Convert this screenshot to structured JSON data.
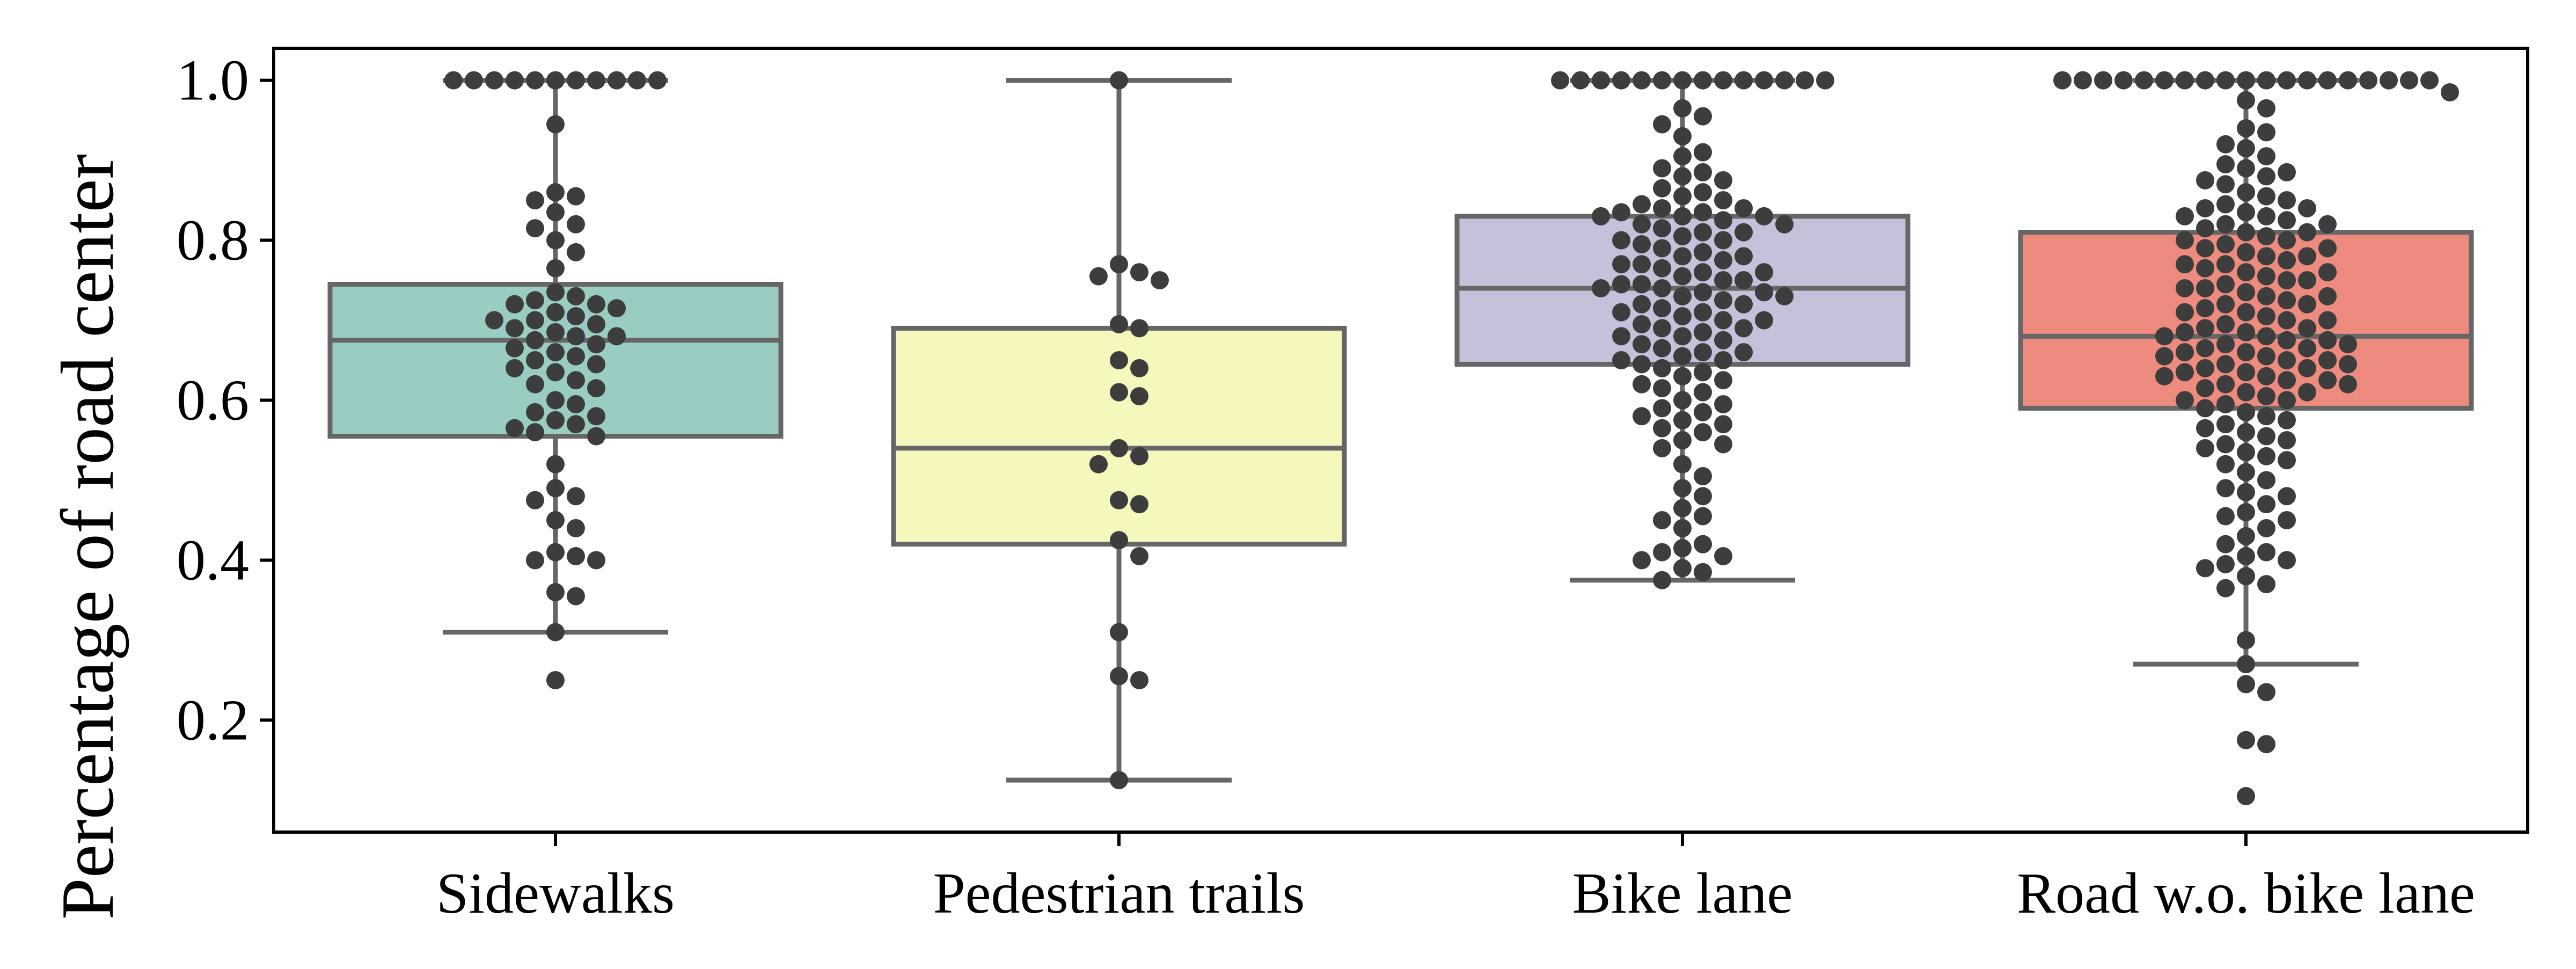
{
  "chart_data": {
    "type": "box",
    "title": "",
    "xlabel": "",
    "ylabel": "Percentage of road center",
    "ylim": [
      0.06,
      1.04
    ],
    "y_ticks": [
      "0.2",
      "0.4",
      "0.6",
      "0.8",
      "1.0"
    ],
    "y_tick_values": [
      0.2,
      0.4,
      0.6,
      0.8,
      1.0
    ],
    "grid": false,
    "legend": "none",
    "overlay": "swarm",
    "point_color": "#3d3d3d",
    "line_color": "#666666",
    "categories": [
      "Sidewalks",
      "Pedestrian trails",
      "Bike lane",
      "Road w.o. bike lane"
    ],
    "boxes": [
      {
        "category": "Sidewalks",
        "color": "#99ccc2",
        "whisker_low": 0.31,
        "q1": 0.555,
        "median": 0.675,
        "q3": 0.745,
        "whisker_high": 1.0,
        "points": [
          1.0,
          1.0,
          1.0,
          1.0,
          1.0,
          1.0,
          1.0,
          1.0,
          1.0,
          1.0,
          1.0,
          0.945,
          0.86,
          0.855,
          0.85,
          0.835,
          0.82,
          0.815,
          0.8,
          0.785,
          0.765,
          0.735,
          0.73,
          0.725,
          0.72,
          0.72,
          0.715,
          0.71,
          0.705,
          0.7,
          0.7,
          0.695,
          0.69,
          0.685,
          0.68,
          0.68,
          0.675,
          0.67,
          0.665,
          0.66,
          0.655,
          0.65,
          0.645,
          0.64,
          0.635,
          0.625,
          0.62,
          0.615,
          0.6,
          0.595,
          0.585,
          0.58,
          0.575,
          0.57,
          0.565,
          0.56,
          0.555,
          0.52,
          0.49,
          0.48,
          0.475,
          0.45,
          0.44,
          0.41,
          0.405,
          0.4,
          0.4,
          0.36,
          0.355,
          0.31,
          0.25
        ]
      },
      {
        "category": "Pedestrian trails",
        "color": "#f5f7bd",
        "whisker_low": 0.125,
        "q1": 0.42,
        "median": 0.54,
        "q3": 0.69,
        "whisker_high": 1.0,
        "points": [
          1.0,
          0.77,
          0.76,
          0.755,
          0.75,
          0.695,
          0.69,
          0.65,
          0.64,
          0.61,
          0.605,
          0.54,
          0.53,
          0.52,
          0.475,
          0.47,
          0.425,
          0.405,
          0.31,
          0.255,
          0.25,
          0.125
        ]
      },
      {
        "category": "Bike lane",
        "color": "#c4c2db",
        "whisker_low": 0.375,
        "q1": 0.645,
        "median": 0.74,
        "q3": 0.83,
        "whisker_high": 1.0,
        "points": [
          1.0,
          1.0,
          1.0,
          1.0,
          1.0,
          1.0,
          1.0,
          1.0,
          1.0,
          1.0,
          1.0,
          1.0,
          1.0,
          1.0,
          0.965,
          0.955,
          0.945,
          0.93,
          0.91,
          0.905,
          0.89,
          0.885,
          0.88,
          0.875,
          0.865,
          0.86,
          0.855,
          0.85,
          0.845,
          0.84,
          0.84,
          0.835,
          0.835,
          0.83,
          0.83,
          0.83,
          0.825,
          0.82,
          0.82,
          0.815,
          0.81,
          0.81,
          0.805,
          0.8,
          0.8,
          0.795,
          0.79,
          0.785,
          0.78,
          0.78,
          0.775,
          0.77,
          0.77,
          0.765,
          0.76,
          0.76,
          0.755,
          0.75,
          0.75,
          0.745,
          0.745,
          0.74,
          0.74,
          0.735,
          0.735,
          0.73,
          0.73,
          0.725,
          0.72,
          0.72,
          0.715,
          0.71,
          0.71,
          0.705,
          0.7,
          0.7,
          0.695,
          0.69,
          0.69,
          0.685,
          0.68,
          0.68,
          0.675,
          0.67,
          0.665,
          0.66,
          0.66,
          0.655,
          0.65,
          0.65,
          0.645,
          0.64,
          0.635,
          0.63,
          0.625,
          0.62,
          0.615,
          0.61,
          0.6,
          0.595,
          0.59,
          0.585,
          0.58,
          0.575,
          0.57,
          0.565,
          0.56,
          0.55,
          0.545,
          0.54,
          0.52,
          0.505,
          0.49,
          0.48,
          0.465,
          0.455,
          0.45,
          0.44,
          0.42,
          0.415,
          0.41,
          0.405,
          0.4,
          0.39,
          0.385,
          0.375
        ]
      },
      {
        "category": "Road w.o. bike lane",
        "color": "#ed8b7f",
        "whisker_low": 0.27,
        "q1": 0.59,
        "median": 0.68,
        "q3": 0.81,
        "whisker_high": 1.0,
        "points": [
          1.0,
          1.0,
          1.0,
          1.0,
          1.0,
          1.0,
          1.0,
          1.0,
          1.0,
          1.0,
          1.0,
          1.0,
          1.0,
          1.0,
          1.0,
          1.0,
          1.0,
          1.0,
          1.0,
          0.985,
          0.975,
          0.965,
          0.94,
          0.935,
          0.92,
          0.915,
          0.905,
          0.895,
          0.89,
          0.885,
          0.88,
          0.875,
          0.87,
          0.86,
          0.855,
          0.85,
          0.845,
          0.84,
          0.84,
          0.835,
          0.83,
          0.83,
          0.825,
          0.82,
          0.82,
          0.815,
          0.81,
          0.81,
          0.805,
          0.8,
          0.8,
          0.795,
          0.79,
          0.79,
          0.785,
          0.78,
          0.78,
          0.775,
          0.77,
          0.77,
          0.765,
          0.76,
          0.76,
          0.755,
          0.75,
          0.75,
          0.745,
          0.74,
          0.74,
          0.735,
          0.73,
          0.73,
          0.725,
          0.72,
          0.72,
          0.715,
          0.71,
          0.71,
          0.705,
          0.7,
          0.7,
          0.695,
          0.69,
          0.69,
          0.685,
          0.685,
          0.68,
          0.68,
          0.675,
          0.675,
          0.67,
          0.67,
          0.665,
          0.665,
          0.66,
          0.66,
          0.655,
          0.655,
          0.65,
          0.65,
          0.645,
          0.645,
          0.64,
          0.64,
          0.635,
          0.635,
          0.63,
          0.63,
          0.625,
          0.625,
          0.62,
          0.62,
          0.615,
          0.61,
          0.61,
          0.605,
          0.6,
          0.6,
          0.595,
          0.59,
          0.585,
          0.58,
          0.575,
          0.57,
          0.565,
          0.56,
          0.555,
          0.55,
          0.545,
          0.54,
          0.535,
          0.53,
          0.525,
          0.52,
          0.51,
          0.5,
          0.49,
          0.485,
          0.48,
          0.47,
          0.46,
          0.455,
          0.45,
          0.44,
          0.43,
          0.42,
          0.41,
          0.405,
          0.4,
          0.395,
          0.39,
          0.38,
          0.37,
          0.365,
          0.3,
          0.27,
          0.245,
          0.235,
          0.175,
          0.17,
          0.105
        ]
      }
    ]
  }
}
